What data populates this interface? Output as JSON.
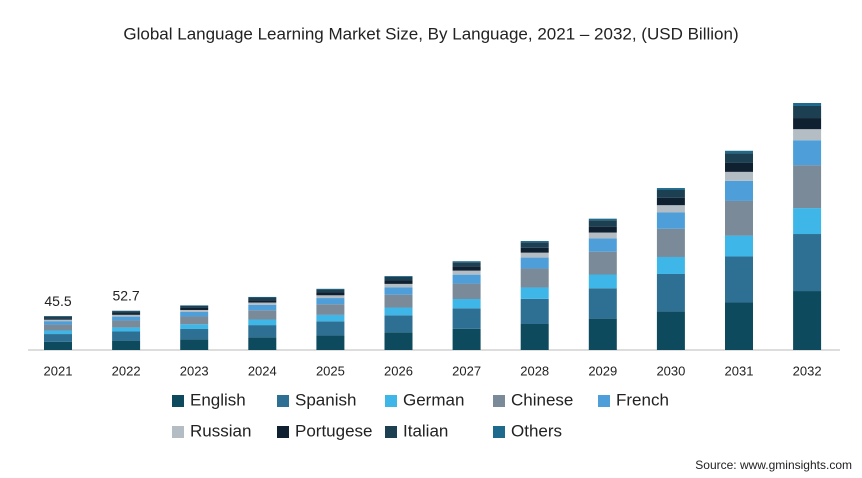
{
  "chart_data": {
    "type": "stacked_bar",
    "title": "Global Language Learning Market Size, By Language, 2021 – 2032, (USD Billion)",
    "categories": [
      "2021",
      "2022",
      "2023",
      "2024",
      "2025",
      "2026",
      "2027",
      "2028",
      "2029",
      "2030",
      "2031",
      "2032"
    ],
    "totals": [
      45.5,
      52.7,
      null,
      null,
      null,
      null,
      null,
      null,
      null,
      null,
      null,
      null
    ],
    "series": [
      {
        "name": "English",
        "color": "#0d4a5e",
        "values": [
          10.9,
          12.6,
          14.3,
          17.0,
          19.6,
          23.7,
          28.4,
          34.9,
          42.1,
          51.9,
          63.8,
          79.1
        ]
      },
      {
        "name": "Spanish",
        "color": "#2e6f94",
        "values": [
          10.5,
          12.2,
          13.9,
          16.4,
          18.9,
          22.9,
          27.5,
          33.7,
          40.7,
          50.1,
          61.7,
          76.5
        ]
      },
      {
        "name": "German",
        "color": "#3fb6e8",
        "values": [
          4.8,
          5.5,
          6.3,
          7.5,
          8.6,
          10.4,
          12.5,
          15.3,
          18.5,
          22.8,
          28.0,
          34.8
        ]
      },
      {
        "name": "Chinese",
        "color": "#7a8a99",
        "values": [
          7.9,
          9.2,
          10.4,
          12.4,
          14.3,
          17.2,
          20.7,
          25.4,
          30.6,
          37.8,
          46.5,
          57.6
        ]
      },
      {
        "name": "French",
        "color": "#4e9fd9",
        "values": [
          4.6,
          5.3,
          6.1,
          7.2,
          8.3,
          10.0,
          12.0,
          14.7,
          17.8,
          21.9,
          27.0,
          33.4
        ]
      },
      {
        "name": "Russian",
        "color": "#b4bcc4",
        "values": [
          2.0,
          2.4,
          2.7,
          3.2,
          3.7,
          4.5,
          5.4,
          6.6,
          7.9,
          9.8,
          12.0,
          14.9
        ]
      },
      {
        "name": "Portugese",
        "color": "#0f2030",
        "values": [
          2.0,
          2.4,
          2.7,
          3.2,
          3.7,
          4.5,
          5.4,
          6.6,
          7.9,
          9.8,
          12.0,
          14.9
        ]
      },
      {
        "name": "Italian",
        "color": "#1d3f52",
        "values": [
          2.2,
          2.6,
          2.9,
          3.5,
          4.0,
          4.9,
          5.8,
          7.2,
          8.6,
          10.6,
          13.1,
          16.2
        ]
      },
      {
        "name": "Others",
        "color": "#1e6a8d",
        "values": [
          0.6,
          0.5,
          0.7,
          0.8,
          1.0,
          1.2,
          1.4,
          1.8,
          2.1,
          2.6,
          3.2,
          4.0
        ]
      }
    ],
    "source": "Source: www.gminsights.com"
  }
}
